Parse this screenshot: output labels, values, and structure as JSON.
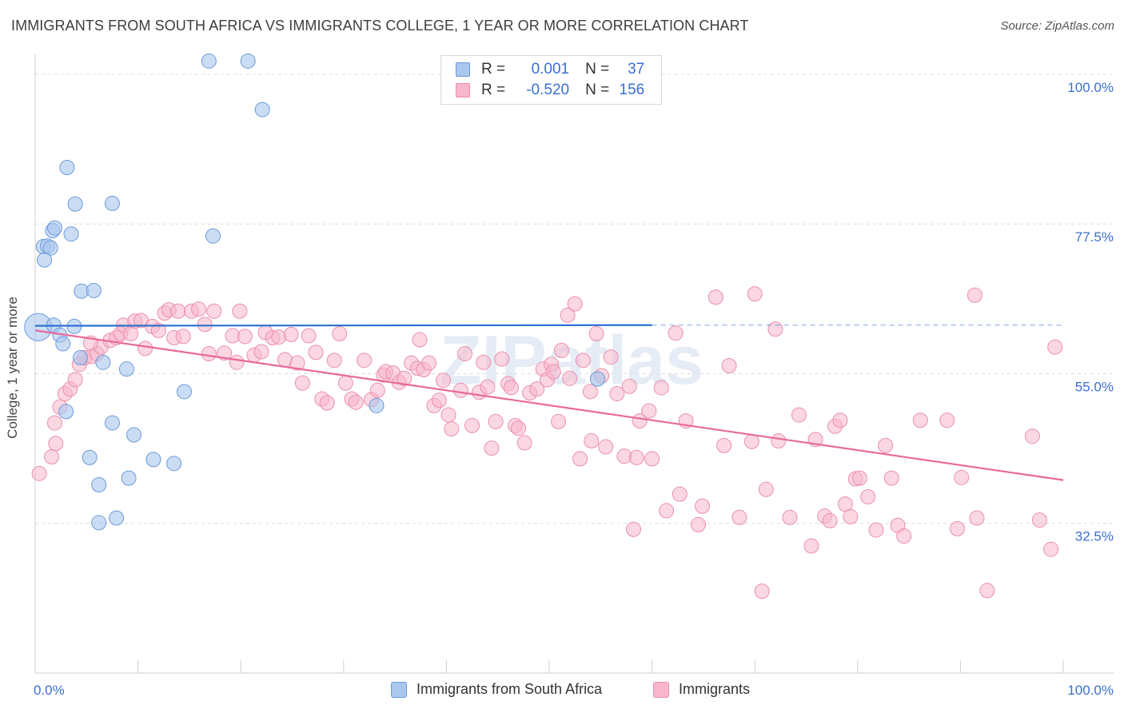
{
  "title": "IMMIGRANTS FROM SOUTH AFRICA VS IMMIGRANTS COLLEGE, 1 YEAR OR MORE CORRELATION CHART",
  "source": "Source: ZipAtlas.com",
  "watermark": "ZIPatlas",
  "colors": {
    "blue_fill": "#a9c7ef",
    "blue_stroke": "#6b9ad8",
    "blue_line": "#2b6fd0",
    "pink_fill": "#f7b6cb",
    "pink_stroke": "#ea8fae",
    "pink_line": "#e8699a",
    "tick_text": "#3a6fd0",
    "grid": "#dcdcdc"
  },
  "legend": {
    "row1": {
      "r_label": "R =",
      "r_value": "0.001",
      "n_label": "N =",
      "n_value": "37"
    },
    "row2": {
      "r_label": "R =",
      "r_value": "-0.520",
      "n_label": "N =",
      "n_value": "156"
    }
  },
  "bottom_legend": {
    "series1": "Immigrants from South Africa",
    "series2": "Immigrants"
  },
  "chart_data": {
    "type": "scatter",
    "title": "IMMIGRANTS FROM SOUTH AFRICA VS IMMIGRANTS COLLEGE, 1 YEAR OR MORE CORRELATION CHART",
    "xlabel": "",
    "ylabel": "College, 1 year or more",
    "xlim": [
      0,
      100
    ],
    "ylim": [
      10,
      103
    ],
    "x_tick_labels": [
      "0.0%",
      "100.0%"
    ],
    "y_ticks": [
      32.5,
      55.0,
      77.5,
      100.0
    ],
    "y_tick_labels": [
      "32.5%",
      "55.0%",
      "77.5%",
      "100.0%"
    ],
    "grid": true,
    "series": [
      {
        "name": "Immigrants from South Africa",
        "R": 0.001,
        "N": 37,
        "trend": {
          "x_start": 0,
          "x_end": 60,
          "y_start": 62.2,
          "y_end": 62.3,
          "dashed_to": 100
        },
        "points": [
          [
            0.3,
            62.0,
            1.9
          ],
          [
            16.9,
            102.0,
            1.0
          ],
          [
            20.7,
            102.0,
            1.0
          ],
          [
            22.1,
            94.7,
            1.0
          ],
          [
            3.1,
            86.0,
            1.0
          ],
          [
            3.9,
            80.5,
            1.0
          ],
          [
            7.5,
            80.6,
            1.0
          ],
          [
            1.7,
            76.5,
            1.0
          ],
          [
            1.9,
            76.9,
            1.0
          ],
          [
            3.5,
            76.0,
            1.0
          ],
          [
            17.3,
            75.7,
            1.0
          ],
          [
            0.8,
            74.1,
            1.0
          ],
          [
            1.2,
            74.2,
            1.0
          ],
          [
            1.5,
            73.9,
            1.0
          ],
          [
            0.9,
            72.1,
            1.0
          ],
          [
            4.5,
            67.4,
            1.0
          ],
          [
            5.7,
            67.5,
            1.0
          ],
          [
            1.8,
            62.3,
            1.0
          ],
          [
            3.8,
            62.1,
            1.0
          ],
          [
            2.4,
            60.8,
            1.0
          ],
          [
            2.7,
            59.5,
            1.0
          ],
          [
            4.4,
            57.4,
            1.0
          ],
          [
            6.6,
            56.7,
            1.0
          ],
          [
            8.9,
            55.7,
            1.0
          ],
          [
            14.5,
            52.3,
            1.0
          ],
          [
            3.0,
            49.3,
            1.0
          ],
          [
            7.5,
            47.6,
            1.0
          ],
          [
            9.6,
            45.8,
            1.0
          ],
          [
            5.3,
            42.4,
            1.0
          ],
          [
            11.5,
            42.1,
            1.0
          ],
          [
            13.5,
            41.5,
            1.0
          ],
          [
            9.1,
            39.3,
            1.0
          ],
          [
            6.2,
            38.3,
            1.0
          ],
          [
            7.9,
            33.3,
            1.0
          ],
          [
            6.2,
            32.6,
            1.0
          ],
          [
            33.2,
            50.2,
            1.0
          ],
          [
            54.7,
            54.2,
            1.0
          ]
        ]
      },
      {
        "name": "Immigrants",
        "R": -0.52,
        "N": 156,
        "trend": {
          "x_start": 0,
          "x_end": 100,
          "y_start": 61.5,
          "y_end": 39.0
        },
        "points": [
          [
            0.4,
            40.0
          ],
          [
            1.6,
            42.5
          ],
          [
            2.0,
            44.5
          ],
          [
            1.9,
            47.6
          ],
          [
            2.4,
            50.0
          ],
          [
            2.9,
            52.0
          ],
          [
            3.4,
            52.7
          ],
          [
            3.9,
            54.1
          ],
          [
            4.3,
            56.4
          ],
          [
            4.8,
            57.4
          ],
          [
            5.5,
            57.6
          ],
          [
            6.0,
            58.0
          ],
          [
            6.4,
            59.0
          ],
          [
            5.4,
            59.6
          ],
          [
            7.3,
            60.0
          ],
          [
            7.9,
            60.4
          ],
          [
            8.3,
            61.0
          ],
          [
            8.6,
            62.3
          ],
          [
            9.3,
            61.0
          ],
          [
            9.7,
            62.9
          ],
          [
            10.3,
            63.0
          ],
          [
            10.7,
            58.8
          ],
          [
            11.4,
            62.1
          ],
          [
            12.0,
            61.5
          ],
          [
            12.6,
            64.1
          ],
          [
            13.0,
            64.6
          ],
          [
            13.9,
            64.4
          ],
          [
            13.5,
            60.4
          ],
          [
            14.4,
            60.6
          ],
          [
            15.2,
            64.4
          ],
          [
            15.9,
            64.7
          ],
          [
            16.5,
            62.4
          ],
          [
            16.9,
            58.0
          ],
          [
            17.4,
            64.4
          ],
          [
            18.4,
            58.1
          ],
          [
            19.2,
            60.7
          ],
          [
            19.6,
            56.7
          ],
          [
            19.9,
            64.4
          ],
          [
            20.4,
            60.6
          ],
          [
            21.3,
            57.8
          ],
          [
            22.0,
            58.3
          ],
          [
            22.4,
            61.2
          ],
          [
            23.1,
            60.4
          ],
          [
            23.7,
            60.5
          ],
          [
            24.3,
            57.1
          ],
          [
            24.9,
            60.9
          ],
          [
            25.5,
            56.6
          ],
          [
            26.0,
            53.6
          ],
          [
            26.6,
            60.7
          ],
          [
            27.3,
            58.2
          ],
          [
            27.9,
            51.2
          ],
          [
            28.4,
            50.6
          ],
          [
            29.1,
            57.0
          ],
          [
            29.6,
            61.0
          ],
          [
            30.2,
            53.6
          ],
          [
            30.8,
            51.2
          ],
          [
            31.2,
            50.7
          ],
          [
            32.0,
            57.0
          ],
          [
            32.7,
            51.1
          ],
          [
            33.3,
            52.5
          ],
          [
            33.9,
            54.8
          ],
          [
            34.1,
            55.3
          ],
          [
            34.8,
            55.1
          ],
          [
            35.4,
            53.7
          ],
          [
            35.9,
            54.3
          ],
          [
            36.6,
            56.6
          ],
          [
            37.2,
            55.8
          ],
          [
            37.8,
            55.6
          ],
          [
            38.3,
            56.6
          ],
          [
            37.4,
            60.1
          ],
          [
            38.8,
            50.2
          ],
          [
            39.3,
            51.0
          ],
          [
            39.7,
            54.0
          ],
          [
            40.2,
            48.8
          ],
          [
            40.5,
            46.7
          ],
          [
            41.4,
            52.5
          ],
          [
            41.8,
            58.0
          ],
          [
            42.5,
            47.2
          ],
          [
            43.2,
            52.2
          ],
          [
            43.6,
            56.7
          ],
          [
            44.0,
            53.0
          ],
          [
            44.4,
            43.8
          ],
          [
            44.8,
            47.8
          ],
          [
            45.4,
            57.2
          ],
          [
            46.0,
            53.5
          ],
          [
            46.3,
            52.9
          ],
          [
            46.7,
            47.2
          ],
          [
            47.0,
            46.8
          ],
          [
            47.6,
            44.6
          ],
          [
            48.1,
            52.1
          ],
          [
            48.8,
            52.7
          ],
          [
            49.4,
            55.7
          ],
          [
            49.8,
            54.1
          ],
          [
            50.2,
            56.4
          ],
          [
            50.4,
            55.3
          ],
          [
            50.9,
            47.8
          ],
          [
            51.2,
            58.5
          ],
          [
            52.0,
            54.3
          ],
          [
            51.8,
            63.8
          ],
          [
            52.5,
            65.5
          ],
          [
            53.0,
            42.2
          ],
          [
            53.3,
            57.0
          ],
          [
            54.0,
            52.3
          ],
          [
            54.6,
            61.0
          ],
          [
            54.1,
            44.9
          ],
          [
            55.1,
            54.7
          ],
          [
            55.5,
            44.0
          ],
          [
            56.0,
            57.5
          ],
          [
            56.6,
            52.0
          ],
          [
            57.3,
            42.6
          ],
          [
            57.8,
            53.1
          ],
          [
            58.5,
            42.4
          ],
          [
            58.8,
            47.9
          ],
          [
            58.2,
            31.6
          ],
          [
            59.7,
            49.4
          ],
          [
            60.0,
            42.2
          ],
          [
            60.9,
            52.9
          ],
          [
            61.4,
            34.4
          ],
          [
            62.3,
            61.1
          ],
          [
            62.7,
            36.9
          ],
          [
            63.3,
            47.9
          ],
          [
            64.5,
            32.3
          ],
          [
            64.9,
            35.1
          ],
          [
            66.2,
            66.5
          ],
          [
            67.0,
            44.2
          ],
          [
            67.5,
            56.2
          ],
          [
            68.5,
            33.4
          ],
          [
            70.0,
            67.0
          ],
          [
            69.7,
            44.8
          ],
          [
            70.7,
            22.3
          ],
          [
            71.1,
            37.6
          ],
          [
            72.0,
            61.7
          ],
          [
            72.3,
            44.9
          ],
          [
            73.4,
            33.4
          ],
          [
            74.3,
            48.8
          ],
          [
            75.9,
            45.1
          ],
          [
            75.5,
            29.1
          ],
          [
            76.8,
            33.6
          ],
          [
            77.3,
            32.9
          ],
          [
            77.8,
            47.1
          ],
          [
            78.3,
            48.0
          ],
          [
            78.8,
            35.4
          ],
          [
            79.3,
            33.5
          ],
          [
            79.8,
            39.2
          ],
          [
            80.2,
            39.3
          ],
          [
            81.0,
            36.5
          ],
          [
            81.8,
            31.5
          ],
          [
            82.7,
            44.2
          ],
          [
            83.3,
            39.3
          ],
          [
            83.9,
            32.2
          ],
          [
            84.5,
            30.6
          ],
          [
            86.1,
            48.0
          ],
          [
            88.7,
            48.0
          ],
          [
            89.7,
            31.7
          ],
          [
            90.1,
            39.4
          ],
          [
            91.6,
            33.3
          ],
          [
            91.4,
            66.8
          ],
          [
            92.6,
            22.4
          ],
          [
            97.0,
            45.6
          ],
          [
            97.7,
            33.0
          ],
          [
            99.2,
            59.0
          ],
          [
            98.8,
            28.6
          ]
        ]
      }
    ]
  }
}
